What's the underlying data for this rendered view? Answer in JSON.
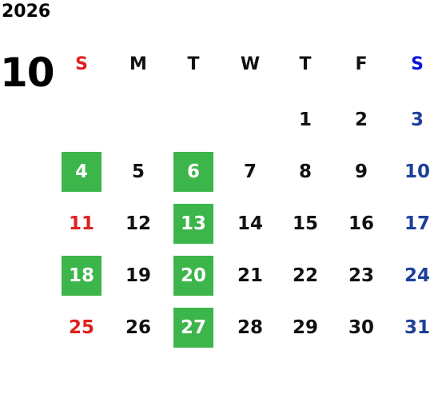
{
  "year": "2026",
  "month": "10",
  "weekdays": [
    "S",
    "M",
    "T",
    "W",
    "T",
    "F",
    "S"
  ],
  "weeks": [
    [
      null,
      null,
      null,
      null,
      {
        "label": "1"
      },
      {
        "label": "2"
      },
      {
        "label": "3"
      }
    ],
    [
      {
        "label": "4",
        "highlighted": true
      },
      {
        "label": "5"
      },
      {
        "label": "6",
        "highlighted": true
      },
      {
        "label": "7"
      },
      {
        "label": "8"
      },
      {
        "label": "9"
      },
      {
        "label": "10"
      }
    ],
    [
      {
        "label": "11"
      },
      {
        "label": "12"
      },
      {
        "label": "13",
        "highlighted": true
      },
      {
        "label": "14"
      },
      {
        "label": "15"
      },
      {
        "label": "16"
      },
      {
        "label": "17"
      }
    ],
    [
      {
        "label": "18",
        "highlighted": true
      },
      {
        "label": "19"
      },
      {
        "label": "20",
        "highlighted": true
      },
      {
        "label": "21"
      },
      {
        "label": "22"
      },
      {
        "label": "23"
      },
      {
        "label": "24"
      }
    ],
    [
      {
        "label": "25"
      },
      {
        "label": "26"
      },
      {
        "label": "27",
        "highlighted": true
      },
      {
        "label": "28"
      },
      {
        "label": "29"
      },
      {
        "label": "30"
      },
      {
        "label": "31"
      }
    ]
  ]
}
